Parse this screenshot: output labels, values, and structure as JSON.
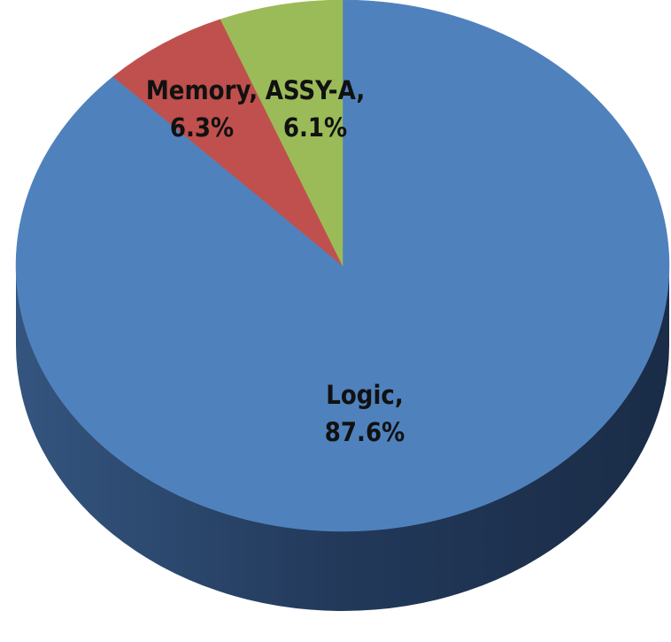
{
  "chart_data": {
    "type": "pie",
    "style": "3d",
    "start_angle_deg": 0,
    "direction": "clockwise",
    "series": [
      {
        "values": [
          87.6,
          6.3,
          6.1
        ],
        "categories": [
          "Logic",
          "Memory",
          "ASSY-A"
        ]
      }
    ],
    "slices": [
      {
        "label": "Logic",
        "value": 87.6,
        "value_text": "87.6%",
        "color": "#4f81bd",
        "side_color": "#2c4a72",
        "label_line1": "Logic,",
        "label_line2": "87.6%"
      },
      {
        "label": "Memory",
        "value": 6.3,
        "value_text": "6.3%",
        "color": "#c0504d",
        "side_color": "#7c2f2d",
        "label_line1": "Memory,",
        "label_line2": "6.3%"
      },
      {
        "label": "ASSY-A",
        "value": 6.1,
        "value_text": "6.1%",
        "color": "#9bbb59",
        "side_color": "#5f7a32",
        "label_line1": "ASSY-A,",
        "label_line2": "6.1%"
      }
    ],
    "legend": "none",
    "title": ""
  }
}
